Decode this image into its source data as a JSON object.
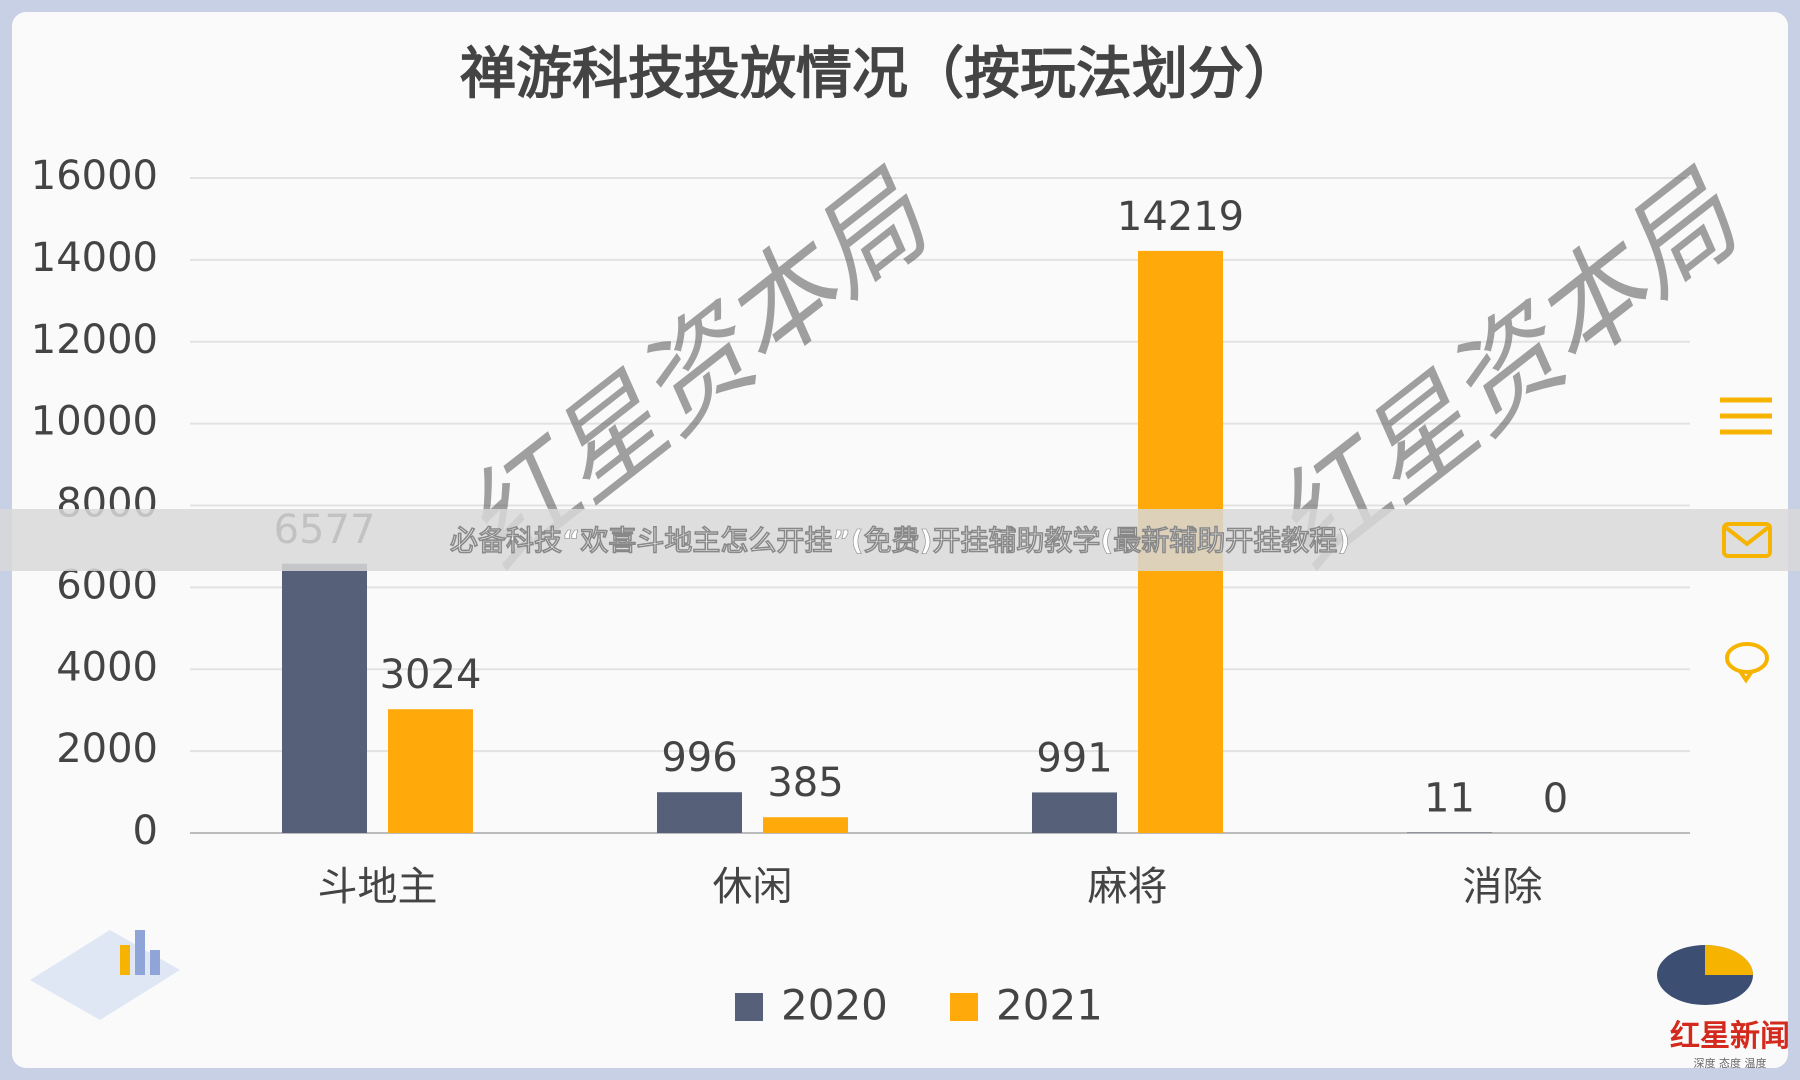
{
  "chart_data": {
    "type": "bar",
    "title": "禅游科技投放情况（按玩法划分）",
    "categories": [
      "斗地主",
      "休闲",
      "麻将",
      "消除"
    ],
    "series": [
      {
        "name": "2020",
        "color": "#566079",
        "values": [
          6577,
          996,
          991,
          11
        ]
      },
      {
        "name": "2021",
        "color": "#ffa90a",
        "values": [
          3024,
          385,
          14219,
          0
        ]
      }
    ],
    "ylim": [
      0,
      16000
    ],
    "yticks": [
      0,
      2000,
      4000,
      6000,
      8000,
      10000,
      12000,
      14000,
      16000
    ],
    "grid": true,
    "legend": "bottom"
  },
  "banner": {
    "text": "必备科技“欢喜斗地主怎么开挂”(免费)开挂辅助教学(最新辅助开挂教程)"
  },
  "watermarks": [
    "红星资本局",
    "红星资本局"
  ],
  "logo": {
    "name": "红星新闻",
    "tagline": "深度 态度 温度"
  }
}
